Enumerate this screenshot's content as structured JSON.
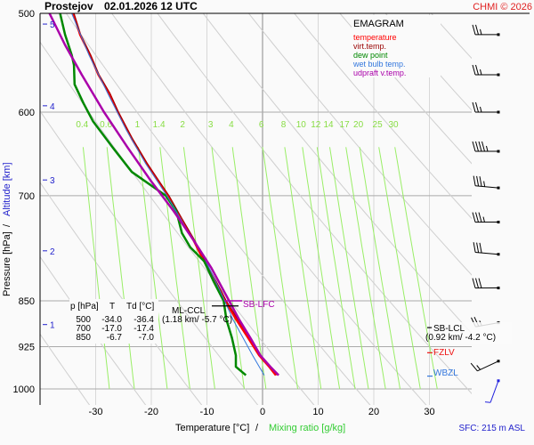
{
  "header": {
    "station": "Prostejov",
    "datetime": "02.01.2026 12 UTC",
    "copyright": "CHMI © 2026"
  },
  "legend": {
    "title": "EMAGRAM",
    "items": [
      {
        "label": "temperature",
        "color": "#ff0000"
      },
      {
        "label": "virt.temp.",
        "color": "#990000"
      },
      {
        "label": "dew point",
        "color": "#008800"
      },
      {
        "label": "wet bulb temp.",
        "color": "#3377dd"
      },
      {
        "label": "udpraft v.temp.",
        "color": "#aa00aa"
      }
    ]
  },
  "table": {
    "headers": [
      "p [hPa]",
      "T",
      "Td [°C]"
    ],
    "rows": [
      [
        "500",
        "-34.0",
        "-36.4"
      ],
      [
        "700",
        "-17.0",
        "-17.4"
      ],
      [
        "850",
        "-6.7",
        "-7.0"
      ]
    ]
  },
  "annotations": {
    "sb_lfc": "SB-LFC",
    "ml_ccl": "ML-CCL",
    "ml_ccl_value": "(1.18 km/ -5.7 °C)",
    "sb_lcl": "SB-LCL",
    "sb_lcl_value": "(0.92 km/ -4.2 °C)",
    "fzlv": "FZLV",
    "wbzl": "WBZL",
    "sfc": "SFC: 215 m ASL"
  },
  "chart_data": {
    "type": "line",
    "title": "Prostejov 02.01.2026 12 UTC",
    "subtitle": "EMAGRAM",
    "xlabel": "Temperature [°C]",
    "xlabel2": "Mixing ratio [g/kg]",
    "ylabel": "Pressure [hPa]",
    "ylabel2": "Altitude [km]",
    "xlim": [
      -44,
      37
    ],
    "ylim": [
      1000,
      500
    ],
    "y_scale": "log",
    "x_ticks": [
      -30,
      -20,
      -10,
      0,
      10,
      20,
      30
    ],
    "y_ticks": [
      500,
      600,
      700,
      850,
      925,
      1000
    ],
    "altitude_ticks": [
      {
        "km": 5,
        "p": 510
      },
      {
        "km": 4,
        "p": 593
      },
      {
        "km": 3,
        "p": 680
      },
      {
        "km": 2,
        "p": 775
      },
      {
        "km": 1,
        "p": 888
      }
    ],
    "mixing_ratio_labels": [
      "0.4",
      "0.6",
      "1",
      "1.4",
      "2",
      "3",
      "4",
      "6",
      "8",
      "10",
      "12",
      "14",
      "17",
      "20",
      "25",
      "30"
    ],
    "mixing_ratio_values": [
      0.4,
      0.6,
      1,
      1.4,
      2,
      3,
      4,
      6,
      8,
      10,
      12,
      14,
      17,
      20,
      25,
      30
    ],
    "grid": true,
    "series": [
      {
        "name": "temperature",
        "color": "#ff0000",
        "points": [
          [
            500,
            -34.0
          ],
          [
            520,
            -32.8
          ],
          [
            540,
            -31.0
          ],
          [
            560,
            -29.5
          ],
          [
            580,
            -27.5
          ],
          [
            600,
            -26.0
          ],
          [
            630,
            -23.5
          ],
          [
            660,
            -20.8
          ],
          [
            700,
            -17.0
          ],
          [
            730,
            -14.8
          ],
          [
            760,
            -12.4
          ],
          [
            790,
            -10.5
          ],
          [
            820,
            -8.5
          ],
          [
            850,
            -6.7
          ],
          [
            880,
            -4.7
          ],
          [
            910,
            -2.6
          ],
          [
            940,
            -0.6
          ],
          [
            960,
            1.2
          ],
          [
            975,
            2.4
          ]
        ]
      },
      {
        "name": "virt.temp.",
        "color": "#990000",
        "points": [
          [
            500,
            -33.9
          ],
          [
            520,
            -32.7
          ],
          [
            540,
            -30.9
          ],
          [
            560,
            -29.4
          ],
          [
            580,
            -27.4
          ],
          [
            600,
            -25.9
          ],
          [
            630,
            -23.4
          ],
          [
            660,
            -20.7
          ],
          [
            700,
            -16.8
          ],
          [
            730,
            -14.5
          ],
          [
            760,
            -12.2
          ],
          [
            790,
            -10.3
          ],
          [
            820,
            -8.3
          ],
          [
            850,
            -6.5
          ],
          [
            880,
            -4.4
          ],
          [
            910,
            -2.3
          ],
          [
            940,
            -0.3
          ],
          [
            960,
            1.5
          ],
          [
            975,
            2.6
          ]
        ]
      },
      {
        "name": "dew point",
        "color": "#008800",
        "points": [
          [
            500,
            -36.4
          ],
          [
            520,
            -35.5
          ],
          [
            540,
            -34.3
          ],
          [
            550,
            -33.9
          ],
          [
            570,
            -33.8
          ],
          [
            590,
            -32.2
          ],
          [
            610,
            -30.5
          ],
          [
            640,
            -27.0
          ],
          [
            670,
            -23.5
          ],
          [
            700,
            -17.4
          ],
          [
            720,
            -15.5
          ],
          [
            750,
            -14.5
          ],
          [
            770,
            -13.0
          ],
          [
            790,
            -10.5
          ],
          [
            820,
            -8.8
          ],
          [
            850,
            -7.0
          ],
          [
            880,
            -6.5
          ],
          [
            910,
            -5.5
          ],
          [
            940,
            -4.8
          ],
          [
            960,
            -4.8
          ],
          [
            975,
            -3.0
          ]
        ]
      },
      {
        "name": "wet bulb temp.",
        "color": "#3377dd",
        "points": [
          [
            500,
            -34.3
          ],
          [
            540,
            -31.2
          ],
          [
            580,
            -27.8
          ],
          [
            620,
            -24.5
          ],
          [
            660,
            -21.0
          ],
          [
            700,
            -17.2
          ],
          [
            740,
            -14.0
          ],
          [
            780,
            -10.8
          ],
          [
            810,
            -9.0
          ],
          [
            850,
            -6.8
          ],
          [
            880,
            -5.3
          ],
          [
            910,
            -3.5
          ],
          [
            940,
            -1.8
          ],
          [
            960,
            -0.6
          ],
          [
            975,
            0.3
          ]
        ]
      },
      {
        "name": "udpraft v.temp.",
        "color": "#aa00aa",
        "points": [
          [
            500,
            -38.3
          ],
          [
            530,
            -35.5
          ],
          [
            560,
            -32.5
          ],
          [
            600,
            -28.5
          ],
          [
            640,
            -24.3
          ],
          [
            680,
            -20.2
          ],
          [
            720,
            -16.0
          ],
          [
            760,
            -12.4
          ],
          [
            800,
            -9.2
          ],
          [
            850,
            -6.0
          ],
          [
            880,
            -4.2
          ],
          [
            910,
            -2.2
          ],
          [
            940,
            -0.4
          ],
          [
            960,
            1.4
          ],
          [
            975,
            2.9
          ]
        ]
      }
    ],
    "wind_barbs": [
      {
        "p": 520,
        "direction_deg": 270,
        "speed_kt": 25
      },
      {
        "p": 560,
        "direction_deg": 270,
        "speed_kt": 25
      },
      {
        "p": 600,
        "direction_deg": 270,
        "speed_kt": 25
      },
      {
        "p": 645,
        "direction_deg": 270,
        "speed_kt": 45
      },
      {
        "p": 690,
        "direction_deg": 275,
        "speed_kt": 35
      },
      {
        "p": 735,
        "direction_deg": 270,
        "speed_kt": 35
      },
      {
        "p": 780,
        "direction_deg": 275,
        "speed_kt": 30
      },
      {
        "p": 830,
        "direction_deg": 270,
        "speed_kt": 30
      },
      {
        "p": 885,
        "direction_deg": 260,
        "speed_kt": 25
      },
      {
        "p": 950,
        "direction_deg": 245,
        "speed_kt": 15
      },
      {
        "p": 985,
        "direction_deg": 200,
        "speed_kt": 5
      }
    ],
    "levels": {
      "sb_lfc_p": 850,
      "ml_ccl_p": 858,
      "sb_lcl_p": 893,
      "fzlv_p": 940,
      "wbzl_p": 975
    }
  }
}
